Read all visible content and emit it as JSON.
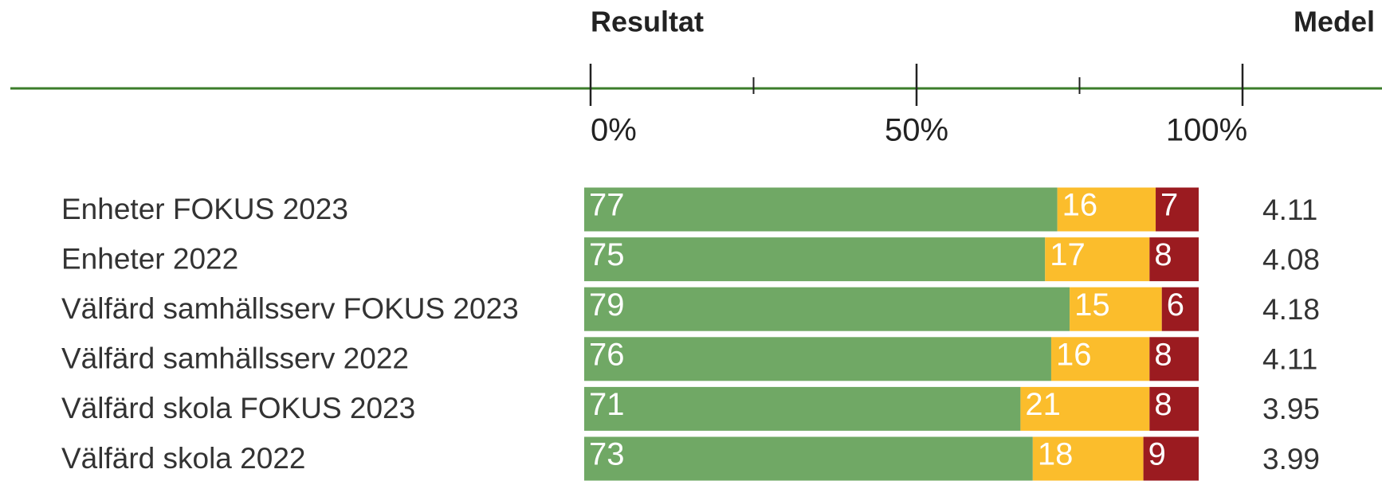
{
  "chart_data": {
    "type": "stacked_barh",
    "title": "Resultat",
    "categories": [
      "Enheter FOKUS 2023",
      "Enheter 2022",
      "Välfärd samhällsserv FOKUS 2023",
      "Välfärd samhällsserv 2022",
      "Välfärd skola FOKUS 2023",
      "Välfärd skola 2022"
    ],
    "series": [
      {
        "color": "#70a865",
        "values": [
          77,
          75,
          79,
          76,
          71,
          73
        ]
      },
      {
        "color": "#fbbd2c",
        "values": [
          16,
          17,
          15,
          16,
          21,
          18
        ]
      },
      {
        "color": "#9b1b20",
        "values": [
          7,
          8,
          6,
          8,
          8,
          9
        ]
      }
    ],
    "xlim": [
      0,
      100
    ],
    "xticks": [
      {
        "value": 0,
        "label": "0%"
      },
      {
        "value": 50,
        "label": "50%"
      },
      {
        "value": 100,
        "label": "100%"
      }
    ],
    "xminor": [
      25,
      75
    ],
    "means": {
      "title": "Medel",
      "values": [
        4.11,
        4.08,
        4.18,
        4.11,
        3.95,
        3.99
      ]
    }
  }
}
